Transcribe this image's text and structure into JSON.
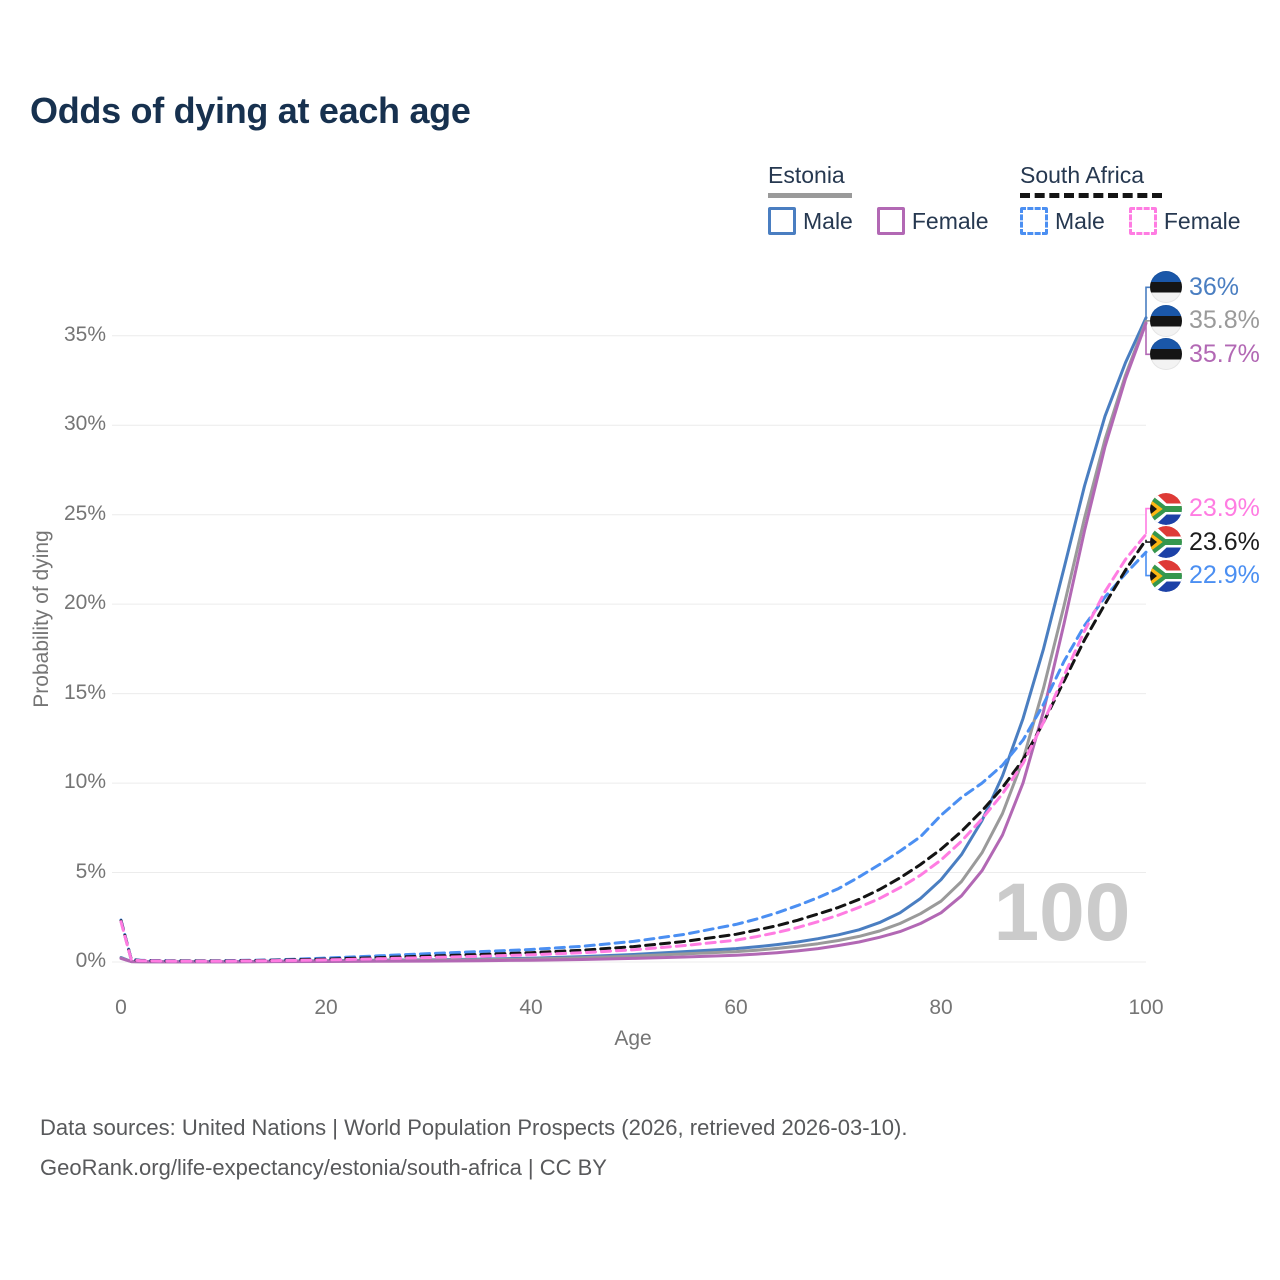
{
  "title": "Odds of dying at each age",
  "watermark": "100",
  "legend": {
    "groups": [
      {
        "id": "estonia",
        "label": "Estonia",
        "line_style": "solid",
        "underline_color": "#9a9a9a",
        "items": [
          {
            "label": "Male",
            "color": "#4a7ec1",
            "dashed": false
          },
          {
            "label": "Female",
            "color": "#b268b4",
            "dashed": false
          }
        ]
      },
      {
        "id": "south-africa",
        "label": "South Africa",
        "line_style": "dashed",
        "underline_color": "#141414",
        "items": [
          {
            "label": "Male",
            "color": "#4b8ff2",
            "dashed": true
          },
          {
            "label": "Female",
            "color": "#ff7ce2",
            "dashed": true
          }
        ]
      }
    ]
  },
  "y_axis": {
    "label": "Probability of dying",
    "ticks": [
      "0%",
      "5%",
      "10%",
      "15%",
      "20%",
      "25%",
      "30%",
      "35%"
    ],
    "tick_values": [
      0,
      5,
      10,
      15,
      20,
      25,
      30,
      35
    ]
  },
  "x_axis": {
    "label": "Age",
    "ticks": [
      "0",
      "20",
      "40",
      "60",
      "80",
      "100"
    ],
    "tick_values": [
      0,
      20,
      40,
      60,
      80,
      100
    ]
  },
  "end_labels": [
    {
      "country": "estonia",
      "text": "36%",
      "color": "#4a7ec1",
      "value": 36.0
    },
    {
      "country": "estonia",
      "text": "35.8%",
      "color": "#9a9a9a",
      "value": 35.8
    },
    {
      "country": "estonia",
      "text": "35.7%",
      "color": "#b268b4",
      "value": 35.7
    },
    {
      "country": "south-africa",
      "text": "23.9%",
      "color": "#ff7ce2",
      "value": 23.9
    },
    {
      "country": "south-africa",
      "text": "23.6%",
      "color": "#1c1c1c",
      "value": 23.6
    },
    {
      "country": "south-africa",
      "text": "22.9%",
      "color": "#4b8ff2",
      "value": 22.9
    }
  ],
  "footer": {
    "line1": "Data sources: United Nations | World Population Prospects (2026, retrieved 2026-03-10).",
    "line2": "GeoRank.org/life-expectancy/estonia/south-africa | CC BY"
  },
  "colors": {
    "title_color": "#17314f",
    "text_navy": "#263850",
    "axis_text": "#757575",
    "gridline": "#ececec",
    "watermark": "#cbcbcb"
  },
  "chart_data": {
    "type": "line",
    "title": "Odds of dying at each age",
    "xlabel": "Age",
    "ylabel": "Probability of dying",
    "xlim": [
      0,
      100
    ],
    "ylim": [
      0,
      37
    ],
    "grid": "horizontal",
    "legend_position": "top-right",
    "x": [
      0,
      1,
      2,
      5,
      10,
      15,
      20,
      25,
      30,
      35,
      40,
      45,
      50,
      55,
      60,
      62,
      64,
      66,
      68,
      70,
      72,
      74,
      76,
      78,
      80,
      82,
      84,
      86,
      88,
      90,
      92,
      94,
      96,
      98,
      100
    ],
    "series": [
      {
        "name": "Estonia Male",
        "country": "estonia",
        "sex": "male",
        "color": "#4a7ec1",
        "dashed": false,
        "values": [
          0.25,
          0.03,
          0.02,
          0.01,
          0.01,
          0.04,
          0.08,
          0.1,
          0.12,
          0.16,
          0.21,
          0.3,
          0.42,
          0.58,
          0.75,
          0.85,
          0.97,
          1.12,
          1.3,
          1.52,
          1.8,
          2.2,
          2.75,
          3.55,
          4.6,
          6.0,
          7.9,
          10.4,
          13.6,
          17.5,
          22.0,
          26.6,
          30.5,
          33.5,
          36.0
        ]
      },
      {
        "name": "Estonia Total",
        "country": "estonia",
        "sex": "both",
        "color": "#9a9a9a",
        "dashed": false,
        "values": [
          0.22,
          0.025,
          0.018,
          0.01,
          0.01,
          0.03,
          0.06,
          0.08,
          0.1,
          0.13,
          0.17,
          0.24,
          0.33,
          0.45,
          0.58,
          0.66,
          0.76,
          0.88,
          1.02,
          1.2,
          1.43,
          1.73,
          2.15,
          2.7,
          3.4,
          4.5,
          6.1,
          8.3,
          11.3,
          15.3,
          19.9,
          24.8,
          29.2,
          32.8,
          35.8
        ]
      },
      {
        "name": "Estonia Female",
        "country": "estonia",
        "sex": "female",
        "color": "#b268b4",
        "dashed": false,
        "values": [
          0.2,
          0.02,
          0.015,
          0.008,
          0.008,
          0.02,
          0.03,
          0.04,
          0.05,
          0.07,
          0.1,
          0.14,
          0.2,
          0.28,
          0.38,
          0.44,
          0.52,
          0.62,
          0.75,
          0.92,
          1.12,
          1.38,
          1.7,
          2.15,
          2.75,
          3.7,
          5.1,
          7.1,
          10.0,
          14.0,
          18.9,
          24.1,
          28.8,
          32.6,
          35.7
        ]
      },
      {
        "name": "South Africa Male",
        "country": "south-africa",
        "sex": "male",
        "color": "#4b8ff2",
        "dashed": true,
        "values": [
          2.35,
          0.15,
          0.09,
          0.07,
          0.07,
          0.12,
          0.22,
          0.34,
          0.47,
          0.58,
          0.7,
          0.88,
          1.15,
          1.55,
          2.1,
          2.4,
          2.75,
          3.15,
          3.6,
          4.1,
          4.75,
          5.45,
          6.2,
          7.0,
          8.2,
          9.2,
          10.0,
          11.0,
          12.4,
          14.4,
          16.8,
          18.8,
          20.4,
          21.7,
          22.9
        ]
      },
      {
        "name": "South Africa Total",
        "country": "south-africa",
        "sex": "both",
        "color": "#141414",
        "dashed": true,
        "values": [
          2.3,
          0.13,
          0.08,
          0.06,
          0.06,
          0.1,
          0.16,
          0.24,
          0.33,
          0.42,
          0.52,
          0.66,
          0.86,
          1.15,
          1.55,
          1.78,
          2.03,
          2.33,
          2.68,
          3.05,
          3.5,
          4.05,
          4.7,
          5.45,
          6.3,
          7.3,
          8.45,
          9.75,
          11.3,
          13.4,
          15.7,
          18.0,
          20.0,
          21.9,
          23.6
        ]
      },
      {
        "name": "South Africa Female",
        "country": "south-africa",
        "sex": "female",
        "color": "#ff7ce2",
        "dashed": true,
        "values": [
          2.25,
          0.12,
          0.07,
          0.05,
          0.05,
          0.08,
          0.12,
          0.18,
          0.25,
          0.32,
          0.4,
          0.52,
          0.68,
          0.92,
          1.22,
          1.42,
          1.65,
          1.92,
          2.25,
          2.62,
          3.05,
          3.55,
          4.15,
          4.85,
          5.7,
          6.75,
          8.0,
          9.4,
          11.1,
          13.4,
          16.0,
          18.5,
          20.7,
          22.5,
          23.9
        ]
      }
    ]
  }
}
